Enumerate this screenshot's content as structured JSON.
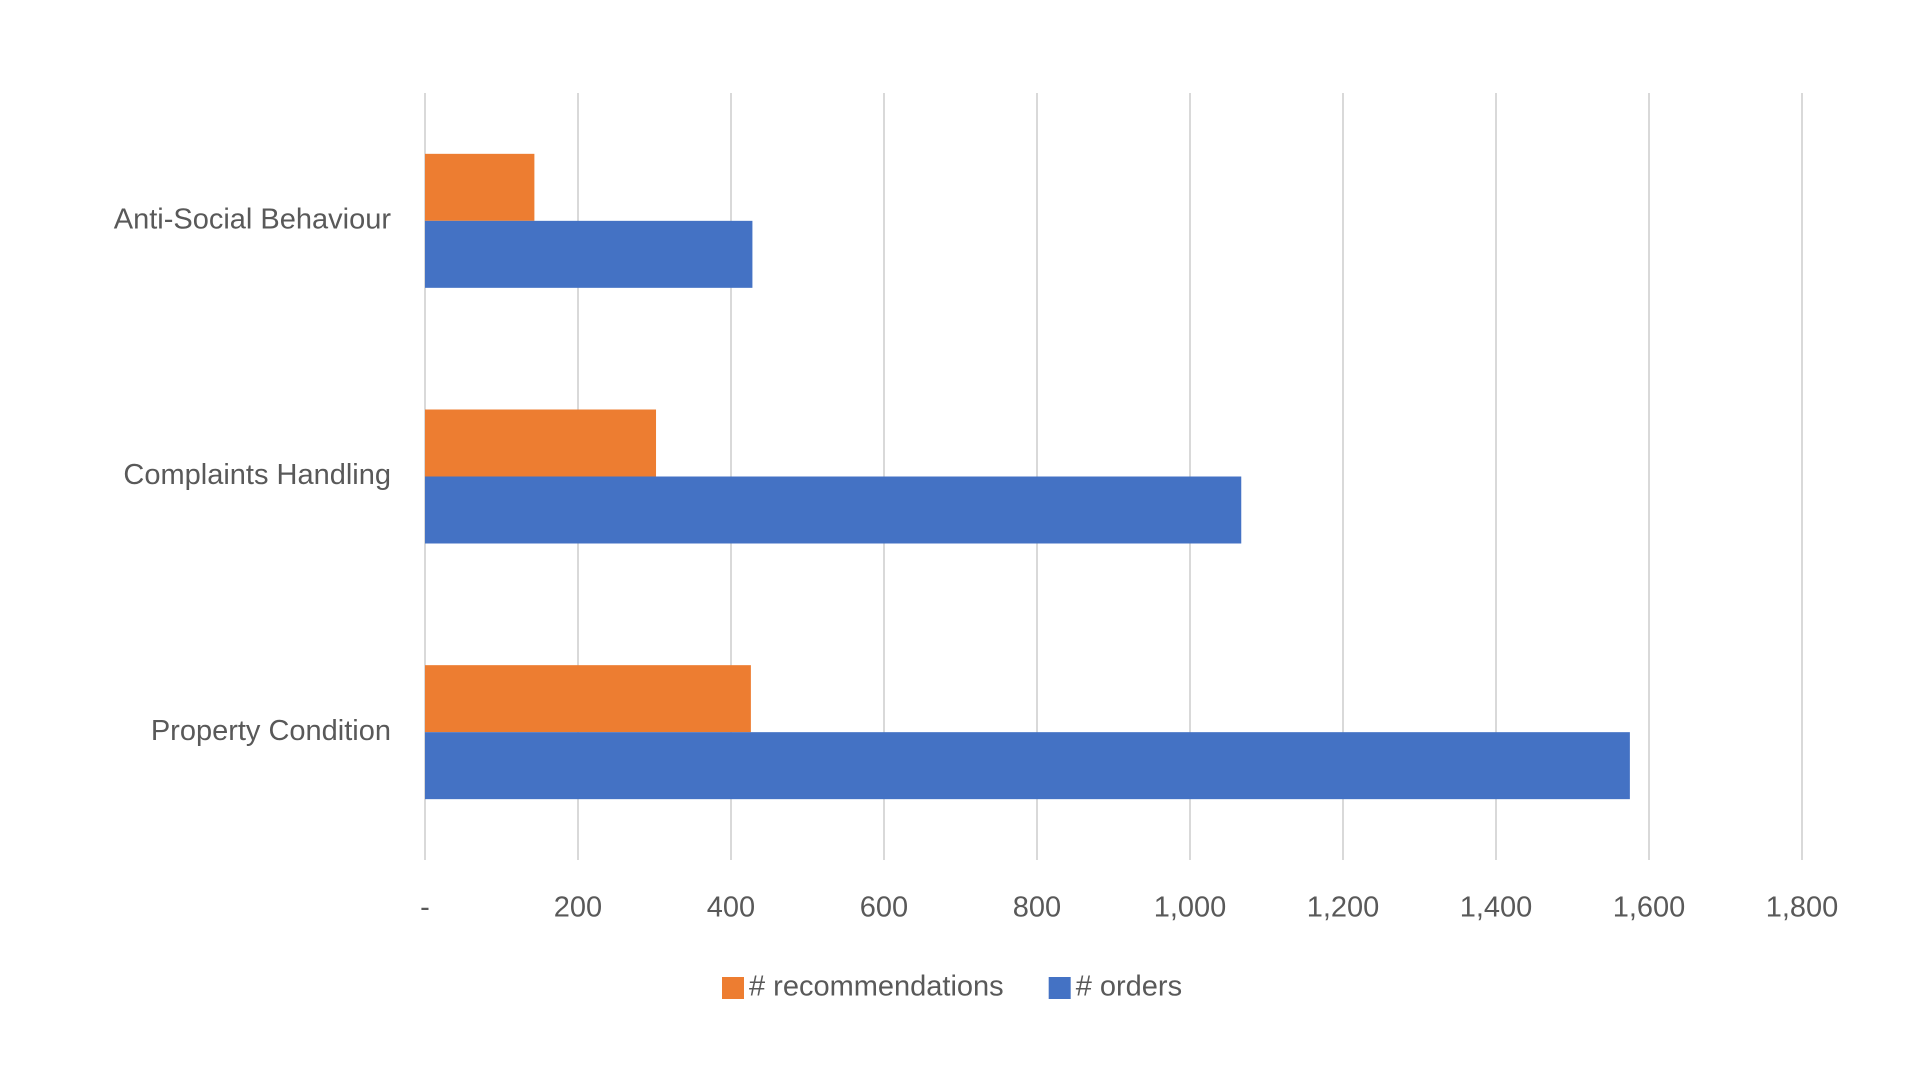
{
  "chart_data": {
    "type": "hbar",
    "categories": [
      "Anti-Social Behaviour",
      "Complaints Handling",
      "Property Condition"
    ],
    "series": [
      {
        "name": "# recommendations",
        "color": "#ed7d31",
        "values": [
          143,
          302,
          426
        ]
      },
      {
        "name": "# orders",
        "color": "#4472c4",
        "values": [
          428,
          1067,
          1575
        ]
      }
    ],
    "xlim": [
      0,
      1800
    ],
    "xticks": [
      {
        "value": 0,
        "label": "-"
      },
      200,
      400,
      600,
      800,
      {
        "value": 1000,
        "label": "1,000"
      },
      {
        "value": 1200,
        "label": "1,200"
      },
      {
        "value": 1400,
        "label": "1,400"
      },
      {
        "value": 1600,
        "label": "1,600"
      },
      {
        "value": 1800,
        "label": "1,800"
      }
    ],
    "grid": true,
    "legend": "bottom"
  }
}
